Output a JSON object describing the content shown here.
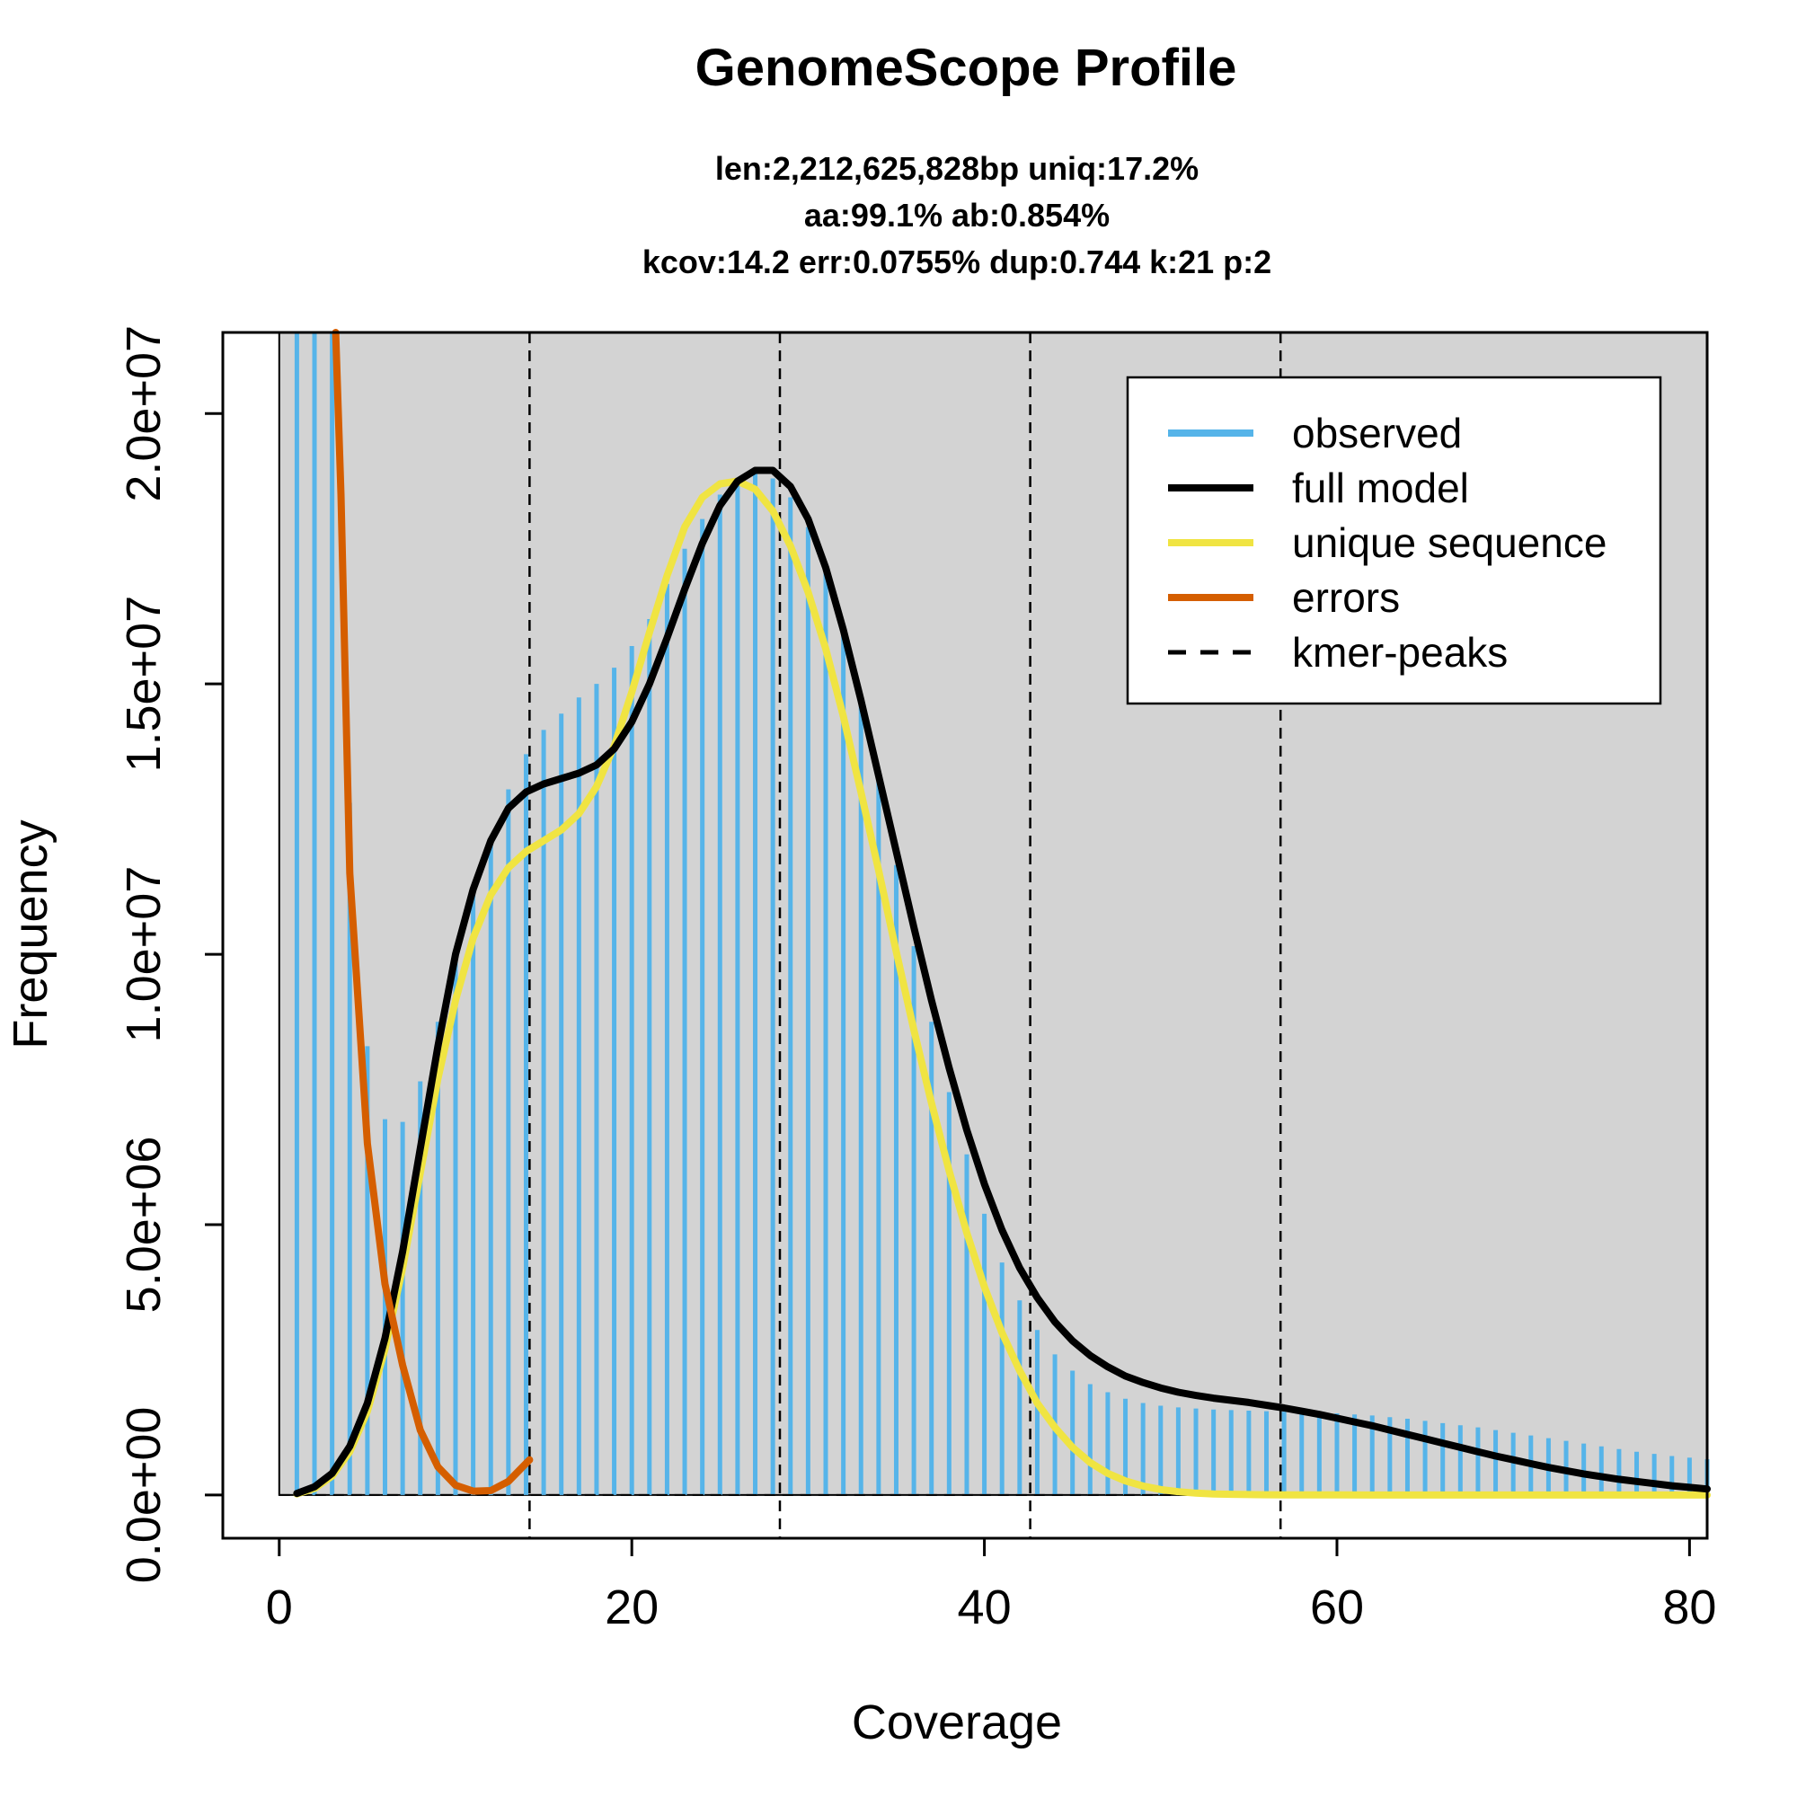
{
  "chart_data": {
    "type": "line",
    "title": "GenomeScope Profile",
    "subtitle_lines": [
      "len:2,212,625,828bp uniq:17.2%",
      "aa:99.1% ab:0.854%",
      "kcov:14.2 err:0.0755%  dup:0.744  k:21 p:2"
    ],
    "xlabel": "Coverage",
    "ylabel": "Frequency",
    "xlim": [
      -3.2,
      81
    ],
    "ylim": [
      -800000,
      21500000
    ],
    "x_ticks": [
      0,
      20,
      40,
      60,
      80
    ],
    "x_tick_labels": [
      "0",
      "20",
      "40",
      "60",
      "80"
    ],
    "y_ticks": [
      0,
      5000000,
      10000000,
      15000000,
      20000000
    ],
    "y_tick_labels": [
      "0.0e+00",
      "5.0e+06",
      "1.0e+07",
      "1.5e+07",
      "2.0e+07"
    ],
    "background_color": "#d3d3d3",
    "observed_region_start": 0,
    "kmer_peaks": [
      14.2,
      28.4,
      42.6,
      56.8
    ],
    "legend_position": "top-right",
    "legend": [
      {
        "label": "observed",
        "color": "#56b4e9",
        "style": "solid"
      },
      {
        "label": "full model",
        "color": "#000000",
        "style": "solid"
      },
      {
        "label": "unique sequence",
        "color": "#f0e442",
        "style": "solid"
      },
      {
        "label": "errors",
        "color": "#d55e00",
        "style": "solid"
      },
      {
        "label": "kmer-peaks",
        "color": "#000000",
        "style": "dashed"
      }
    ],
    "series": [
      {
        "name": "observed",
        "kind": "bars",
        "color": "#56b4e9",
        "x": [
          1,
          2,
          3,
          4,
          5,
          6,
          7,
          8,
          9,
          10,
          11,
          12,
          13,
          14,
          15,
          16,
          17,
          18,
          19,
          20,
          21,
          22,
          23,
          24,
          25,
          26,
          27,
          28,
          29,
          30,
          31,
          32,
          33,
          34,
          35,
          36,
          37,
          38,
          39,
          40,
          41,
          42,
          43,
          44,
          45,
          46,
          47,
          48,
          49,
          50,
          51,
          52,
          53,
          54,
          55,
          56,
          57,
          58,
          59,
          60,
          61,
          62,
          63,
          64,
          65,
          66,
          67,
          68,
          69,
          70,
          71,
          72,
          73,
          74,
          75,
          76,
          77,
          78,
          79,
          80,
          81
        ],
        "values": [
          21500000,
          21500000,
          21500000,
          12800000,
          8300000,
          6950000,
          6900000,
          7650000,
          8750000,
          10050000,
          11150000,
          12150000,
          13050000,
          13700000,
          14150000,
          14450000,
          14750000,
          15000000,
          15300000,
          15700000,
          16200000,
          16850000,
          17500000,
          18050000,
          18500000,
          18800000,
          18900000,
          18800000,
          18450000,
          17900000,
          17150000,
          16100000,
          14800000,
          13300000,
          11650000,
          10150000,
          8750000,
          7450000,
          6300000,
          5200000,
          4300000,
          3600000,
          3050000,
          2600000,
          2300000,
          2050000,
          1900000,
          1780000,
          1700000,
          1650000,
          1620000,
          1600000,
          1580000,
          1570000,
          1560000,
          1550000,
          1540000,
          1530000,
          1520000,
          1510000,
          1490000,
          1470000,
          1440000,
          1410000,
          1370000,
          1330000,
          1290000,
          1250000,
          1200000,
          1150000,
          1100000,
          1050000,
          1000000,
          950000,
          900000,
          850000,
          800000,
          760000,
          720000,
          690000,
          660000
        ]
      },
      {
        "name": "full model",
        "kind": "line",
        "color": "#000000",
        "x": [
          1,
          2,
          3,
          4,
          5,
          6,
          7,
          8,
          9,
          10,
          11,
          12,
          13,
          14,
          15,
          16,
          17,
          18,
          19,
          20,
          21,
          22,
          23,
          24,
          25,
          26,
          27,
          28,
          29,
          30,
          31,
          32,
          33,
          34,
          35,
          36,
          37,
          38,
          39,
          40,
          41,
          42,
          43,
          44,
          45,
          46,
          47,
          48,
          49,
          50,
          51,
          52,
          53,
          54,
          55,
          56,
          57,
          58,
          59,
          60,
          61,
          62,
          63,
          64,
          65,
          66,
          67,
          68,
          69,
          70,
          71,
          72,
          73,
          74,
          75,
          76,
          77,
          78,
          79,
          80,
          81
        ],
        "values": [
          30000,
          150000,
          400000,
          900000,
          1700000,
          2900000,
          4500000,
          6400000,
          8300000,
          10000000,
          11200000,
          12100000,
          12700000,
          13000000,
          13150000,
          13250000,
          13350000,
          13500000,
          13800000,
          14300000,
          15000000,
          15850000,
          16750000,
          17600000,
          18300000,
          18750000,
          18950000,
          18950000,
          18650000,
          18050000,
          17150000,
          16000000,
          14700000,
          13300000,
          11900000,
          10500000,
          9150000,
          7900000,
          6750000,
          5750000,
          4900000,
          4200000,
          3650000,
          3200000,
          2850000,
          2580000,
          2370000,
          2200000,
          2080000,
          1980000,
          1900000,
          1840000,
          1790000,
          1750000,
          1710000,
          1660000,
          1610000,
          1550000,
          1490000,
          1420000,
          1350000,
          1280000,
          1200000,
          1120000,
          1040000,
          960000,
          880000,
          800000,
          720000,
          650000,
          580000,
          510000,
          450000,
          390000,
          340000,
          290000,
          250000,
          210000,
          170000,
          140000,
          110000
        ]
      },
      {
        "name": "unique sequence",
        "kind": "line",
        "color": "#f0e442",
        "x": [
          1,
          2,
          3,
          4,
          5,
          6,
          7,
          8,
          9,
          10,
          11,
          12,
          13,
          14,
          15,
          16,
          17,
          18,
          19,
          20,
          21,
          22,
          23,
          24,
          25,
          26,
          27,
          28,
          29,
          30,
          31,
          32,
          33,
          34,
          35,
          36,
          37,
          38,
          39,
          40,
          41,
          42,
          43,
          44,
          45,
          46,
          47,
          48,
          49,
          50,
          51,
          52,
          53,
          54,
          55,
          56,
          57,
          58,
          59,
          60,
          65,
          70,
          75,
          81
        ],
        "values": [
          20000,
          120000,
          350000,
          800000,
          1550000,
          2700000,
          4200000,
          5950000,
          7700000,
          9150000,
          10300000,
          11100000,
          11600000,
          11900000,
          12100000,
          12300000,
          12600000,
          13100000,
          13850000,
          14850000,
          15950000,
          17000000,
          17900000,
          18450000,
          18700000,
          18750000,
          18600000,
          18200000,
          17550000,
          16700000,
          15650000,
          14400000,
          13000000,
          11550000,
          10050000,
          8600000,
          7250000,
          6000000,
          4850000,
          3850000,
          3000000,
          2300000,
          1700000,
          1250000,
          880000,
          600000,
          400000,
          260000,
          165000,
          100000,
          60000,
          35000,
          20000,
          12000,
          7000,
          4000,
          2000,
          1000,
          500,
          200,
          50,
          10,
          5,
          0
        ]
      },
      {
        "name": "errors",
        "kind": "line",
        "color": "#d55e00",
        "x": [
          3.2,
          3.5,
          4,
          4.5,
          5,
          6,
          7,
          8,
          9,
          10,
          11,
          12,
          13,
          14.2
        ],
        "values": [
          21600000,
          18500000,
          11500000,
          9000000,
          6500000,
          3900000,
          2400000,
          1200000,
          520000,
          180000,
          70000,
          80000,
          250000,
          650000
        ]
      }
    ]
  }
}
